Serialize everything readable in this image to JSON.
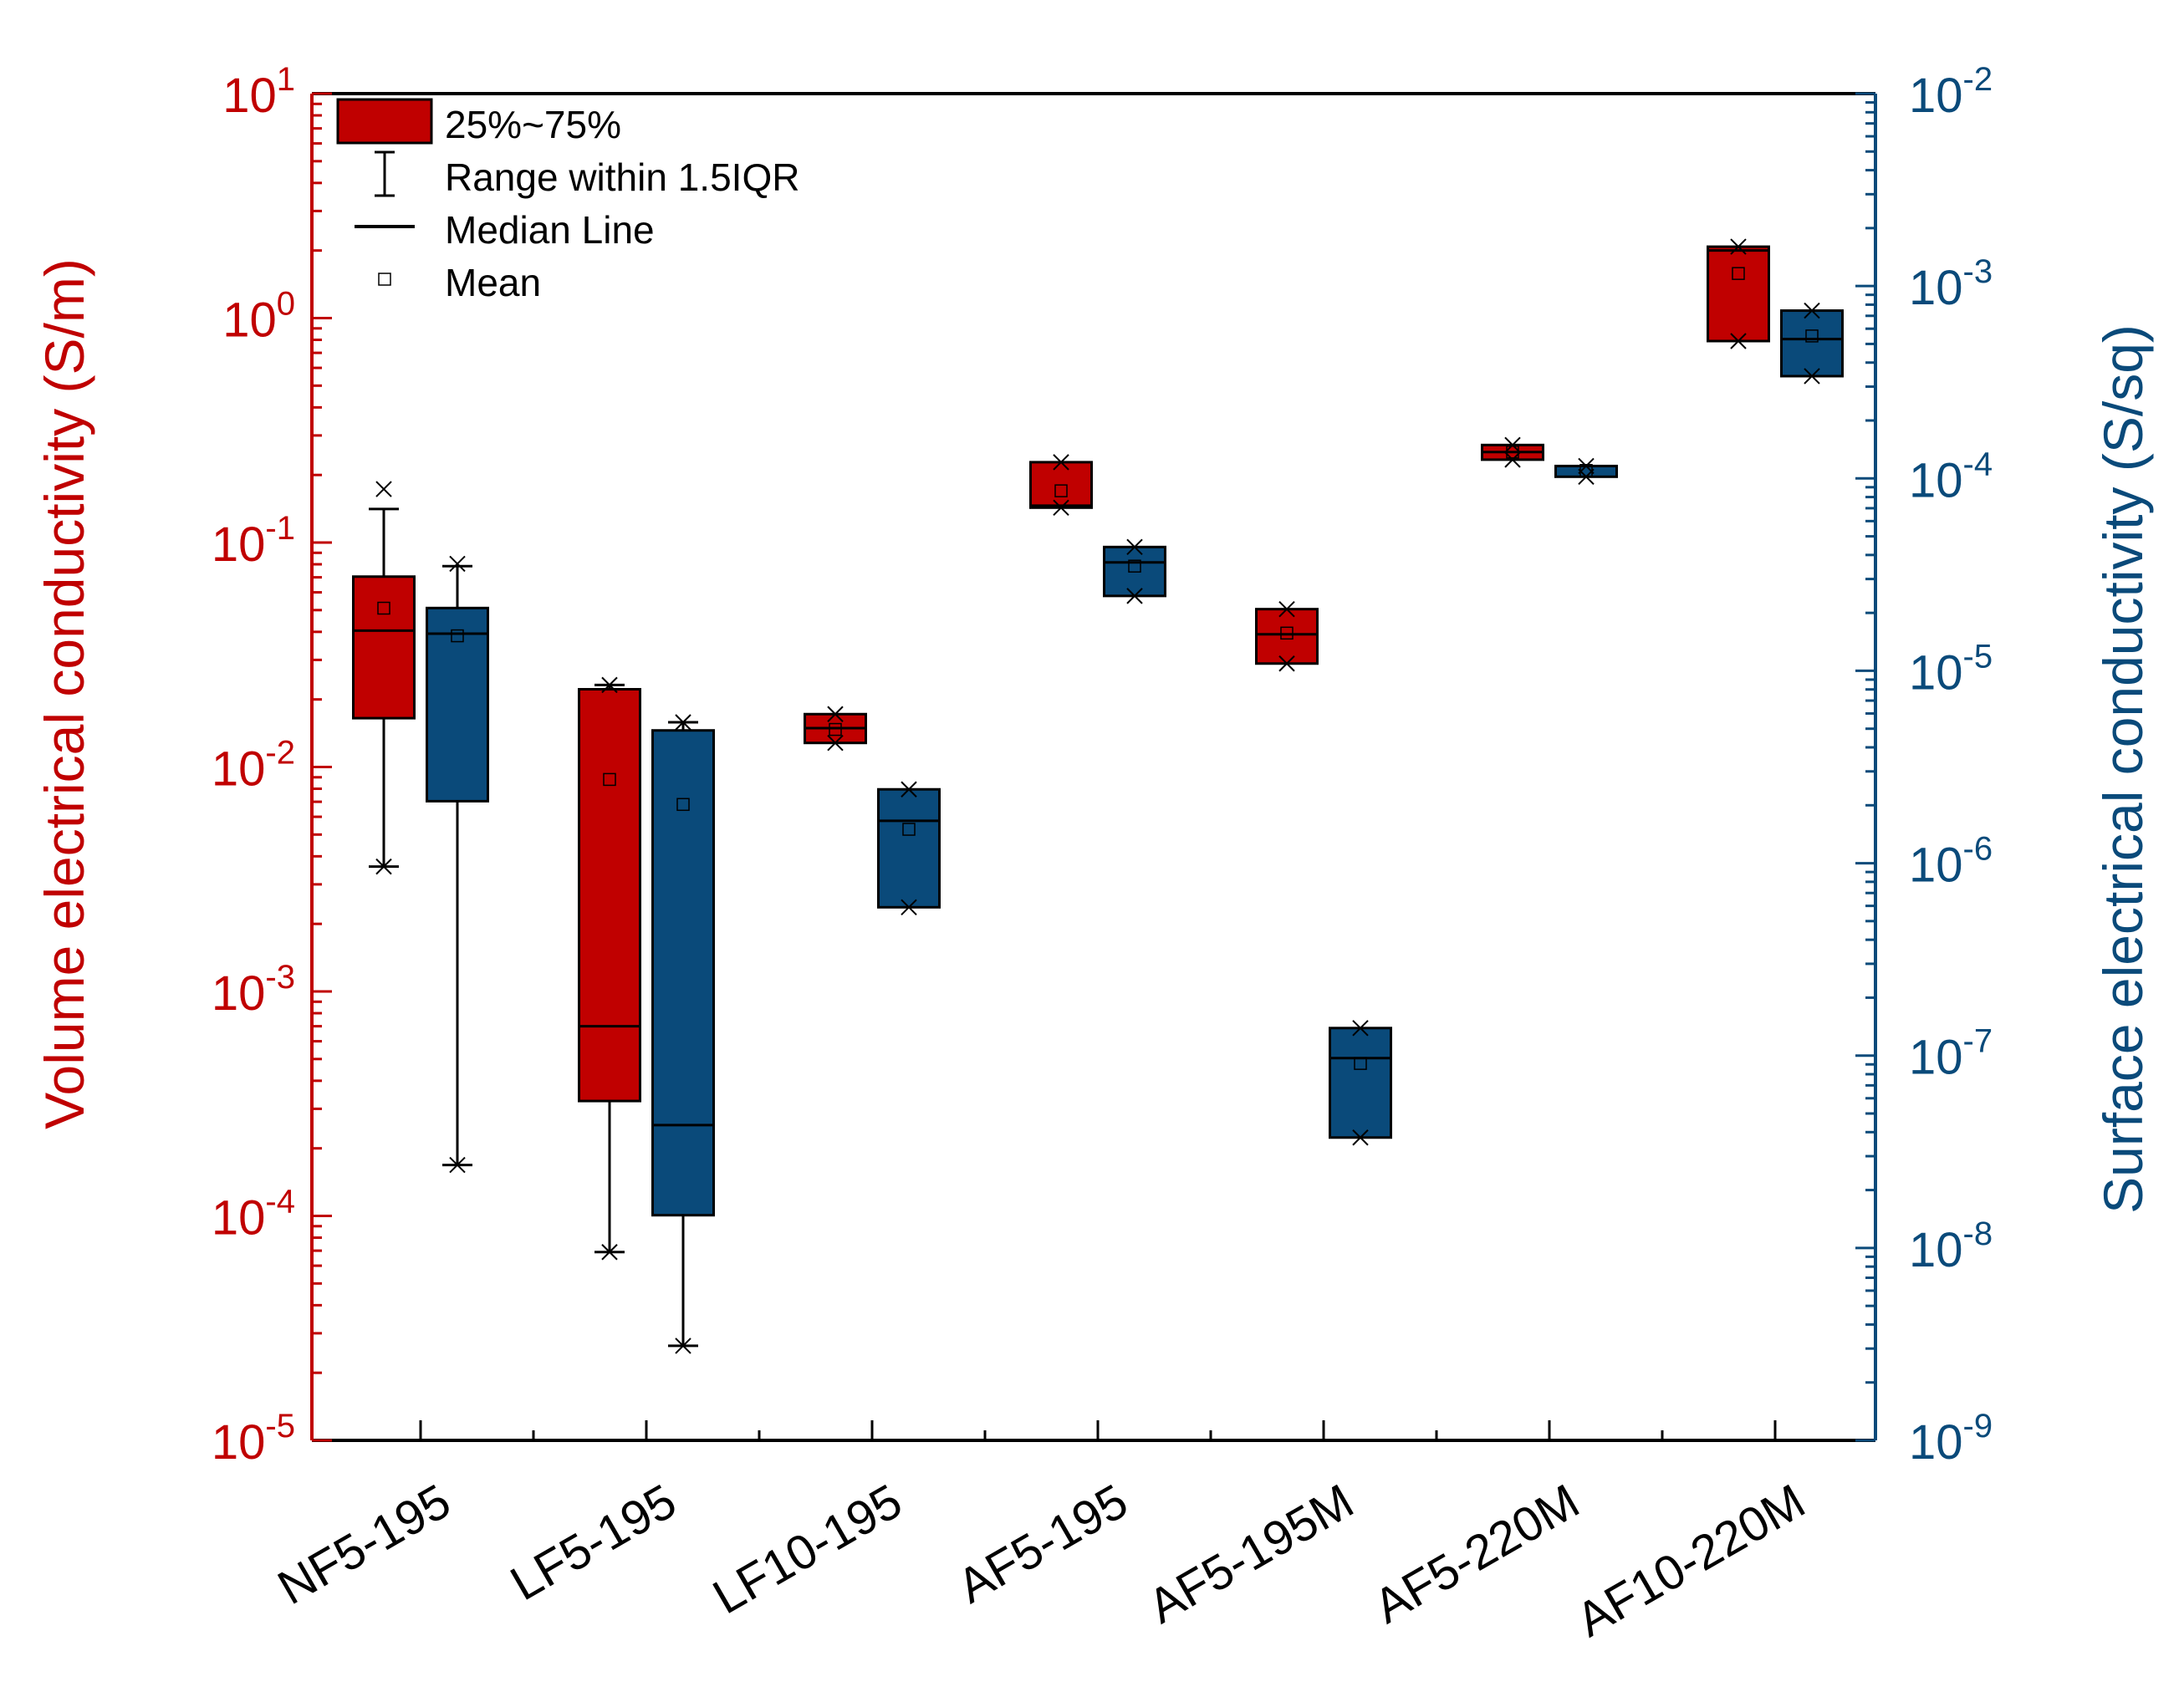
{
  "chart_data": {
    "type": "box",
    "title": "",
    "xlabel": "",
    "categories": [
      "NF5-195",
      "LF5-195",
      "LF10-195",
      "AF5-195",
      "AF5-195M",
      "AF5-220M",
      "AF10-220M"
    ],
    "left_axis": {
      "label": "Volume electrical conductivity (S/m)",
      "scale": "log",
      "ylim": [
        1e-05,
        10
      ],
      "color": "#c00000",
      "ticks": [
        {
          "value": 1e-05,
          "base": "10",
          "exp": "-5"
        },
        {
          "value": 0.0001,
          "base": "10",
          "exp": "-4"
        },
        {
          "value": 0.001,
          "base": "10",
          "exp": "-3"
        },
        {
          "value": 0.01,
          "base": "10",
          "exp": "-2"
        },
        {
          "value": 0.1,
          "base": "10",
          "exp": "-1"
        },
        {
          "value": 1,
          "base": "10",
          "exp": "0"
        },
        {
          "value": 10,
          "base": "10",
          "exp": "1"
        }
      ]
    },
    "right_axis": {
      "label": "Surface electrical conductivity (S/sq)",
      "scale": "log",
      "ylim": [
        1e-09,
        0.01
      ],
      "color": "#0a4a7a",
      "ticks": [
        {
          "value": 1e-09,
          "base": "10",
          "exp": "-9"
        },
        {
          "value": 1e-08,
          "base": "10",
          "exp": "-8"
        },
        {
          "value": 1e-07,
          "base": "10",
          "exp": "-7"
        },
        {
          "value": 1e-06,
          "base": "10",
          "exp": "-6"
        },
        {
          "value": 1e-05,
          "base": "10",
          "exp": "-5"
        },
        {
          "value": 0.0001,
          "base": "10",
          "exp": "-4"
        },
        {
          "value": 0.001,
          "base": "10",
          "exp": "-3"
        },
        {
          "value": 0.01,
          "base": "10",
          "exp": "-2"
        }
      ]
    },
    "legend": {
      "position": "top-left",
      "entries": [
        {
          "kind": "box",
          "label": "25%~75%"
        },
        {
          "kind": "whisker",
          "label": "Range within 1.5IQR"
        },
        {
          "kind": "median",
          "label": "Median Line"
        },
        {
          "kind": "mean",
          "label": "Mean"
        }
      ]
    },
    "series": [
      {
        "name": "Volume electrical conductivity",
        "axis": "left",
        "color": "#c00000",
        "boxes": [
          {
            "q1": 0.0165,
            "median": 0.0405,
            "q3": 0.0705,
            "mean": 0.051,
            "whisker_low": 0.0036,
            "whisker_high": 0.141,
            "min": 0.0036,
            "max": 0.173
          },
          {
            "q1": 0.000325,
            "median": 0.0007,
            "q3": 0.0222,
            "mean": 0.0088,
            "whisker_low": 6.9e-05,
            "whisker_high": 0.0232,
            "min": 6.9e-05,
            "max": 0.0232
          },
          {
            "q1": 0.0128,
            "median": 0.0149,
            "q3": 0.0172,
            "mean": 0.0147,
            "min": 0.0128,
            "max": 0.0172
          },
          {
            "q1": 0.143,
            "median": 0.146,
            "q3": 0.228,
            "mean": 0.17,
            "min": 0.143,
            "max": 0.228
          },
          {
            "q1": 0.0289,
            "median": 0.039,
            "q3": 0.0505,
            "mean": 0.0395,
            "min": 0.0289,
            "max": 0.0505
          },
          {
            "q1": 0.234,
            "median": 0.253,
            "q3": 0.272,
            "mean": 0.253,
            "min": 0.234,
            "max": 0.272
          },
          {
            "q1": 0.79,
            "median": 2.0,
            "q3": 2.08,
            "mean": 1.58,
            "min": 0.79,
            "max": 2.08
          }
        ]
      },
      {
        "name": "Surface electrical conductivity",
        "axis": "right",
        "color": "#0a4a7a",
        "boxes": [
          {
            "q1": 2.1e-06,
            "median": 1.56e-05,
            "q3": 2.12e-05,
            "mean": 1.52e-05,
            "whisker_low": 2.7e-08,
            "whisker_high": 3.5e-05,
            "min": 2.7e-08,
            "max": 3.6e-05
          },
          {
            "q1": 1.48e-08,
            "median": 4.35e-08,
            "q3": 4.9e-06,
            "mean": 2.02e-06,
            "whisker_low": 3.1e-09,
            "whisker_high": 5.4e-06,
            "min": 3.1e-09,
            "max": 5.4e-06
          },
          {
            "q1": 5.9e-07,
            "median": 1.66e-06,
            "q3": 2.42e-06,
            "mean": 1.5e-06,
            "min": 5.9e-07,
            "max": 2.42e-06
          },
          {
            "q1": 2.45e-05,
            "median": 3.66e-05,
            "q3": 4.4e-05,
            "mean": 3.5e-05,
            "min": 2.45e-05,
            "max": 4.4e-05
          },
          {
            "q1": 3.75e-08,
            "median": 9.7e-08,
            "q3": 1.39e-07,
            "mean": 9.1e-08,
            "min": 3.75e-08,
            "max": 1.39e-07
          },
          {
            "q1": 0.000102,
            "median": 0.000116,
            "q3": 0.000116,
            "mean": 0.00011,
            "min": 0.000102,
            "max": 0.000116
          },
          {
            "q1": 0.00034,
            "median": 0.00053,
            "q3": 0.000745,
            "mean": 0.00055,
            "min": 0.00034,
            "max": 0.000745
          }
        ]
      }
    ]
  }
}
